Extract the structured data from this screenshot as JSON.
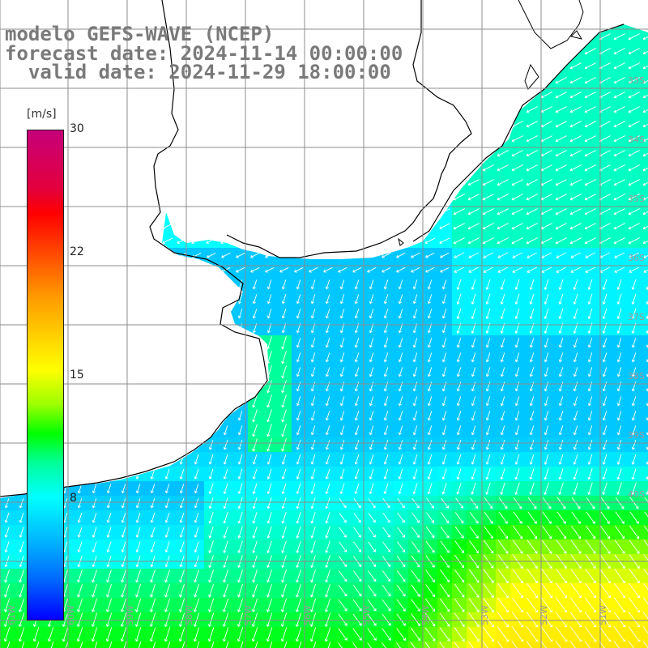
{
  "header": {
    "line1": "modelo GEFS-WAVE (NCEP)",
    "line2": "forecast date: 2024-11-14 00:00:00",
    "line3": "  valid date: 2024-11-29 18:00:00"
  },
  "colorbar": {
    "unit": "[m/s]",
    "ticks": [
      "30",
      "22",
      "15",
      "8"
    ],
    "tick_values": [
      30,
      22,
      15,
      8
    ],
    "min": 0,
    "max": 30
  },
  "map": {
    "land_color": "#ffffff",
    "coastline_color": "#000000",
    "grid_color": "#8c8c8c",
    "lat_labels": [
      "33S",
      "34S",
      "35S",
      "36S",
      "37S",
      "38S",
      "39S",
      "40S"
    ],
    "lon_labels": [
      "61W",
      "60W",
      "59W",
      "58W",
      "57W",
      "56W",
      "55W",
      "54W",
      "53W",
      "52W",
      "51W"
    ]
  }
}
